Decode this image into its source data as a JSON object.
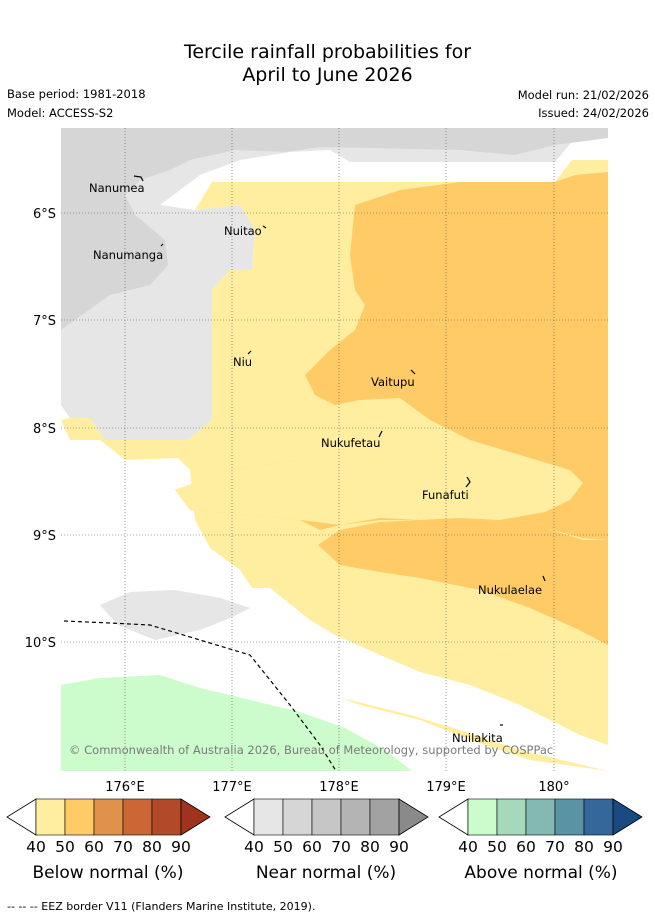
{
  "title_line1": "Tercile rainfall probabilities for",
  "title_line2": "April to June 2026",
  "base_period": "Base period: 1981-2018",
  "model": "Model: ACCESS-S2",
  "model_run": "Model run: 21/02/2026",
  "issued": "Issued: 24/02/2026",
  "map": {
    "lat_labels": [
      "6°S",
      "7°S",
      "8°S",
      "9°S",
      "10°S"
    ],
    "lon_labels": [
      "176°E",
      "177°E",
      "178°E",
      "179°E",
      "180°"
    ],
    "places": [
      {
        "name": "Nanumea",
        "id": "nanumea"
      },
      {
        "name": "Nuitao",
        "id": "nuitao"
      },
      {
        "name": "Nanumanga",
        "id": "nanumanga"
      },
      {
        "name": "Niu",
        "id": "niu"
      },
      {
        "name": "Vaitupu",
        "id": "vaitupu"
      },
      {
        "name": "Nukufetau",
        "id": "nukufetau"
      },
      {
        "name": "Funafuti",
        "id": "funafuti"
      },
      {
        "name": "Nukulaelae",
        "id": "nukulaelae"
      },
      {
        "name": "Nuilakita",
        "id": "nuilakita"
      }
    ],
    "copyright": "© Commonwealth of Australia 2026, Bureau of Meteorology, supported by COSPPac"
  },
  "colorbars": [
    {
      "id": "below",
      "label": "Below normal (%)",
      "ticks": [
        "40",
        "50",
        "60",
        "70",
        "80",
        "90"
      ],
      "colors": [
        "#ffeea0",
        "#fecb66",
        "#e0924a",
        "#cc6634",
        "#b24a2a",
        "#a0331d"
      ]
    },
    {
      "id": "near",
      "label": "Near normal (%)",
      "ticks": [
        "40",
        "50",
        "60",
        "70",
        "80",
        "90"
      ],
      "colors": [
        "#e6e6e6",
        "#d6d6d6",
        "#c6c6c6",
        "#b4b4b4",
        "#a2a2a2",
        "#8a8a8a"
      ]
    },
    {
      "id": "above",
      "label": "Above normal (%)",
      "ticks": [
        "40",
        "50",
        "60",
        "70",
        "80",
        "90"
      ],
      "colors": [
        "#ccfccc",
        "#a6d8bc",
        "#84b8b2",
        "#5a94a4",
        "#35679a",
        "#1a4a82"
      ]
    }
  ],
  "footnote": "-- -- -- EEZ border V11 (Flanders Marine Institute, 2019)."
}
